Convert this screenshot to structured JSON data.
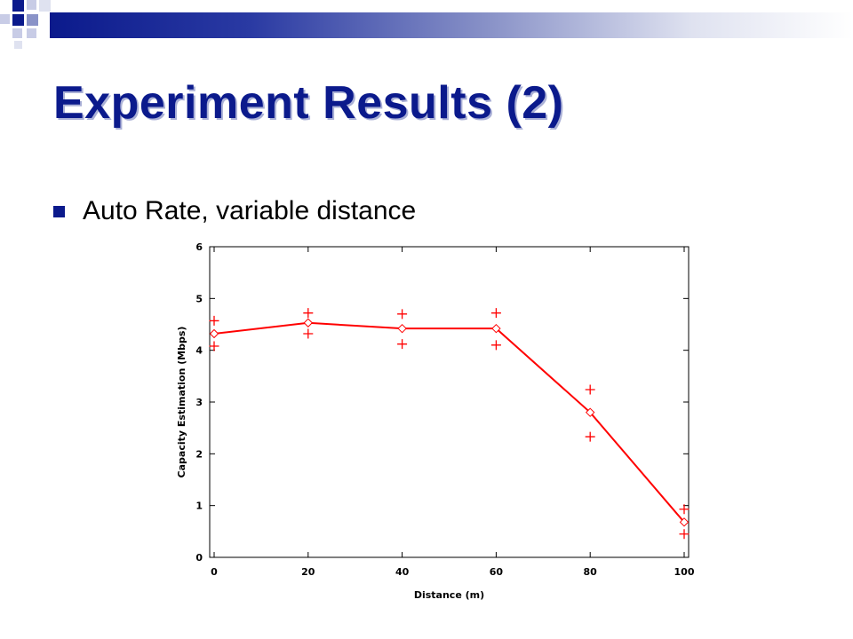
{
  "slide": {
    "title": "Experiment Results (2)",
    "bullet": "Auto Rate, variable distance"
  },
  "colors": {
    "title": "#0b1a8c",
    "accent_bar_start": "#0b1a8c",
    "series": "#ff0000"
  },
  "chart_data": {
    "type": "line",
    "xlabel": "Distance (m)",
    "ylabel": "Capacity Estimation (Mbps)",
    "xlim": [
      0,
      100
    ],
    "ylim": [
      0,
      6
    ],
    "xticks": [
      0,
      20,
      40,
      60,
      80,
      100
    ],
    "yticks": [
      0,
      1,
      2,
      3,
      4,
      5,
      6
    ],
    "grid": false,
    "series": [
      {
        "marker": "diamond",
        "style": "line",
        "x": [
          0,
          20,
          40,
          60,
          80,
          100
        ],
        "y": [
          4.32,
          4.53,
          4.42,
          4.42,
          2.8,
          0.68
        ]
      },
      {
        "marker": "plus",
        "style": "points",
        "x": [
          0,
          0,
          20,
          20,
          40,
          40,
          60,
          60,
          80,
          80,
          100,
          100
        ],
        "y": [
          4.57,
          4.08,
          4.72,
          4.32,
          4.7,
          4.12,
          4.72,
          4.1,
          3.24,
          2.33,
          0.93,
          0.45
        ]
      }
    ]
  }
}
